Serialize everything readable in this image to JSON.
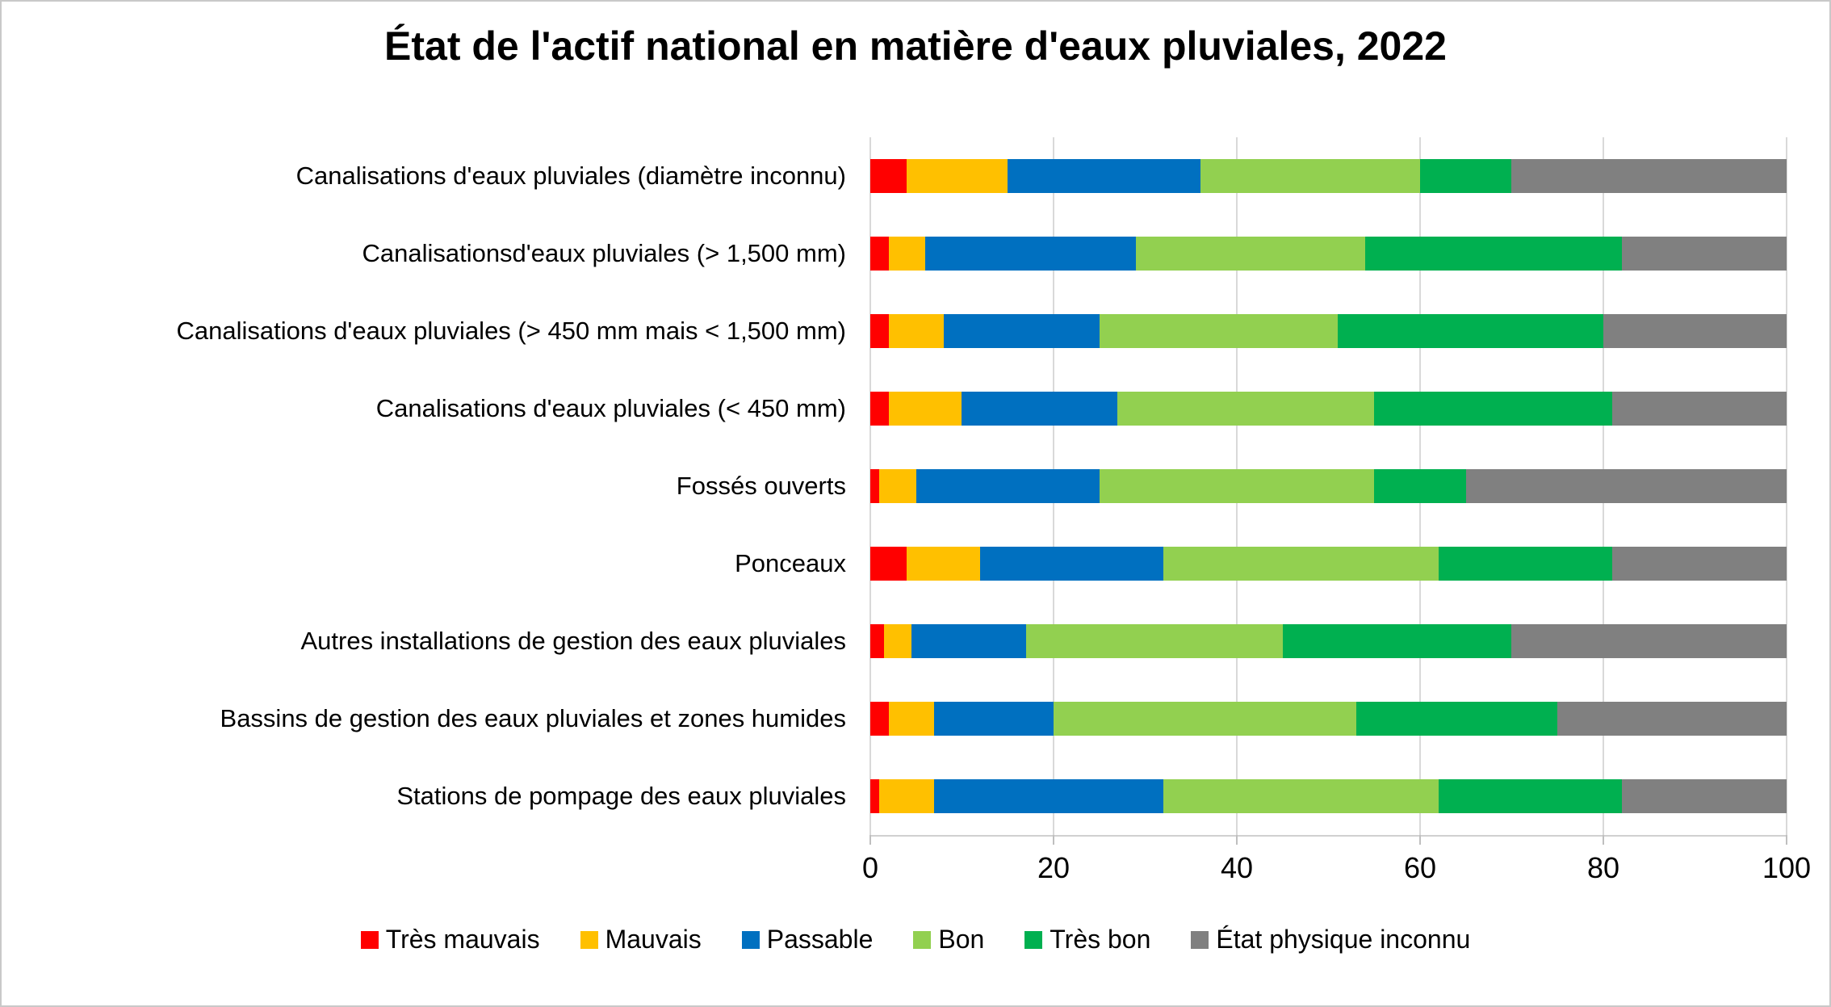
{
  "title": "État de l'actif national en matière d'eaux pluviales, 2022",
  "chart_data": {
    "type": "bar",
    "orientation": "horizontal",
    "stacked": true,
    "stack_total": 100,
    "title": "État de l'actif national en matière d'eaux pluviales, 2022",
    "xlabel": "",
    "ylabel": "",
    "xlim": [
      0,
      100
    ],
    "x_ticks": [
      "0",
      "20",
      "40",
      "60",
      "80",
      "100"
    ],
    "x_tick_values": [
      0,
      20,
      40,
      60,
      80,
      100
    ],
    "grid": "vertical",
    "legend_position": "bottom",
    "categories": [
      "Canalisations d'eaux pluviales (diamètre inconnu)",
      "Canalisationsd'eaux pluviales  (> 1,500 mm)",
      "Canalisations d'eaux pluviales (> 450 mm mais < 1,500 mm)",
      "Canalisations d'eaux pluviales (< 450 mm)",
      "Fossés ouverts",
      "Ponceaux",
      "Autres installations de gestion des eaux pluviales",
      "Bassins de gestion des eaux pluviales et zones humides",
      "Stations de pompage des eaux pluviales"
    ],
    "series": [
      {
        "name": "Très mauvais",
        "color": "#FF0000",
        "values": [
          4,
          2,
          2,
          2,
          1,
          4,
          1.5,
          2,
          1
        ]
      },
      {
        "name": "Mauvais",
        "color": "#FFC000",
        "values": [
          11,
          4,
          6,
          8,
          4,
          8,
          3,
          5,
          6
        ]
      },
      {
        "name": "Passable",
        "color": "#0070C0",
        "values": [
          21,
          23,
          17,
          17,
          20,
          20,
          12.5,
          13,
          25
        ]
      },
      {
        "name": "Bon",
        "color": "#92D050",
        "values": [
          24,
          25,
          26,
          28,
          30,
          30,
          28,
          33,
          30
        ]
      },
      {
        "name": "Très bon",
        "color": "#00B050",
        "values": [
          10,
          28,
          29,
          26,
          10,
          19,
          25,
          22,
          20
        ]
      },
      {
        "name": "État physique inconnu",
        "color": "#808080",
        "values": [
          30,
          18,
          20,
          19,
          35,
          19,
          30,
          25,
          18
        ]
      }
    ]
  },
  "colors": {
    "gridline": "#D9D9D9",
    "axis": "#BFBFBF",
    "text": "#000000"
  }
}
